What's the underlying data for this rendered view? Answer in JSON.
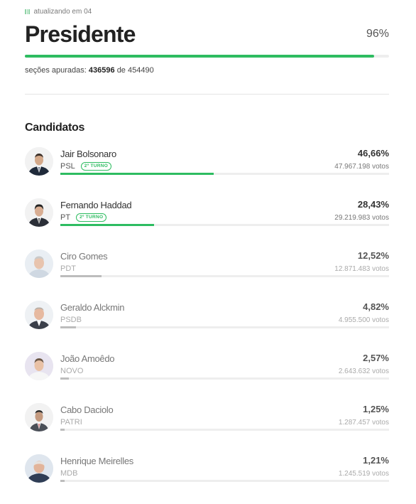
{
  "header": {
    "status": "atualizando em 04",
    "title": "Presidente",
    "percent_counted_label": "96%",
    "percent_counted": 96,
    "sections_label": "seções apuradas:",
    "sections_counted": "436596",
    "sections_of": "de",
    "sections_total": "454490"
  },
  "candidates_title": "Candidatos",
  "colors": {
    "accent": "#2ebc61",
    "inactive_bar": "#bdbdbd",
    "track": "#eeeeee"
  },
  "candidates": [
    {
      "name": "Jair Bolsonaro",
      "party": "PSL",
      "tag": "2º TURNO",
      "percent_label": "46,66%",
      "percent": 46.66,
      "votes": "47.967.198 votos",
      "active": true
    },
    {
      "name": "Fernando Haddad",
      "party": "PT",
      "tag": "2º TURNO",
      "percent_label": "28,43%",
      "percent": 28.43,
      "votes": "29.219.983 votos",
      "active": true
    },
    {
      "name": "Ciro Gomes",
      "party": "PDT",
      "tag": "",
      "percent_label": "12,52%",
      "percent": 12.52,
      "votes": "12.871.483 votos",
      "active": false
    },
    {
      "name": "Geraldo Alckmin",
      "party": "PSDB",
      "tag": "",
      "percent_label": "4,82%",
      "percent": 4.82,
      "votes": "4.955.500 votos",
      "active": false
    },
    {
      "name": "João Amoêdo",
      "party": "NOVO",
      "tag": "",
      "percent_label": "2,57%",
      "percent": 2.57,
      "votes": "2.643.632 votos",
      "active": false
    },
    {
      "name": "Cabo Daciolo",
      "party": "PATRI",
      "tag": "",
      "percent_label": "1,25%",
      "percent": 1.25,
      "votes": "1.287.457 votos",
      "active": false
    },
    {
      "name": "Henrique Meirelles",
      "party": "MDB",
      "tag": "",
      "percent_label": "1,21%",
      "percent": 1.21,
      "votes": "1.245.519 votos",
      "active": false
    }
  ]
}
